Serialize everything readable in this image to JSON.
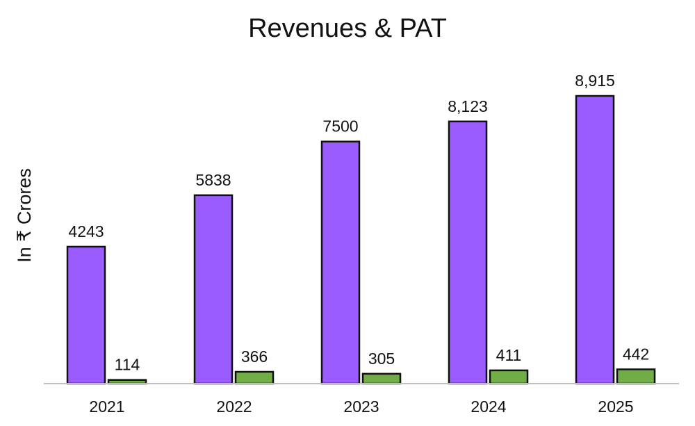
{
  "chart_data": {
    "type": "bar",
    "title": "Revenues & PAT",
    "xlabel": "",
    "ylabel": "In ₹ Crores",
    "categories": [
      "2021",
      "2022",
      "2023",
      "2024",
      "2025"
    ],
    "series": [
      {
        "name": "Revenues",
        "color": "#9a5cff",
        "values": [
          4243,
          5838,
          7500,
          8123,
          8915
        ],
        "labels": [
          "4243",
          "5838",
          "7500",
          "8,123",
          "8,915"
        ]
      },
      {
        "name": "PAT",
        "color": "#70ad47",
        "values": [
          114,
          366,
          305,
          411,
          442
        ],
        "labels": [
          "114",
          "366",
          "305",
          "411",
          "442"
        ]
      }
    ],
    "ylim": [
      0,
      9500
    ],
    "grid": false,
    "legend": "none"
  }
}
